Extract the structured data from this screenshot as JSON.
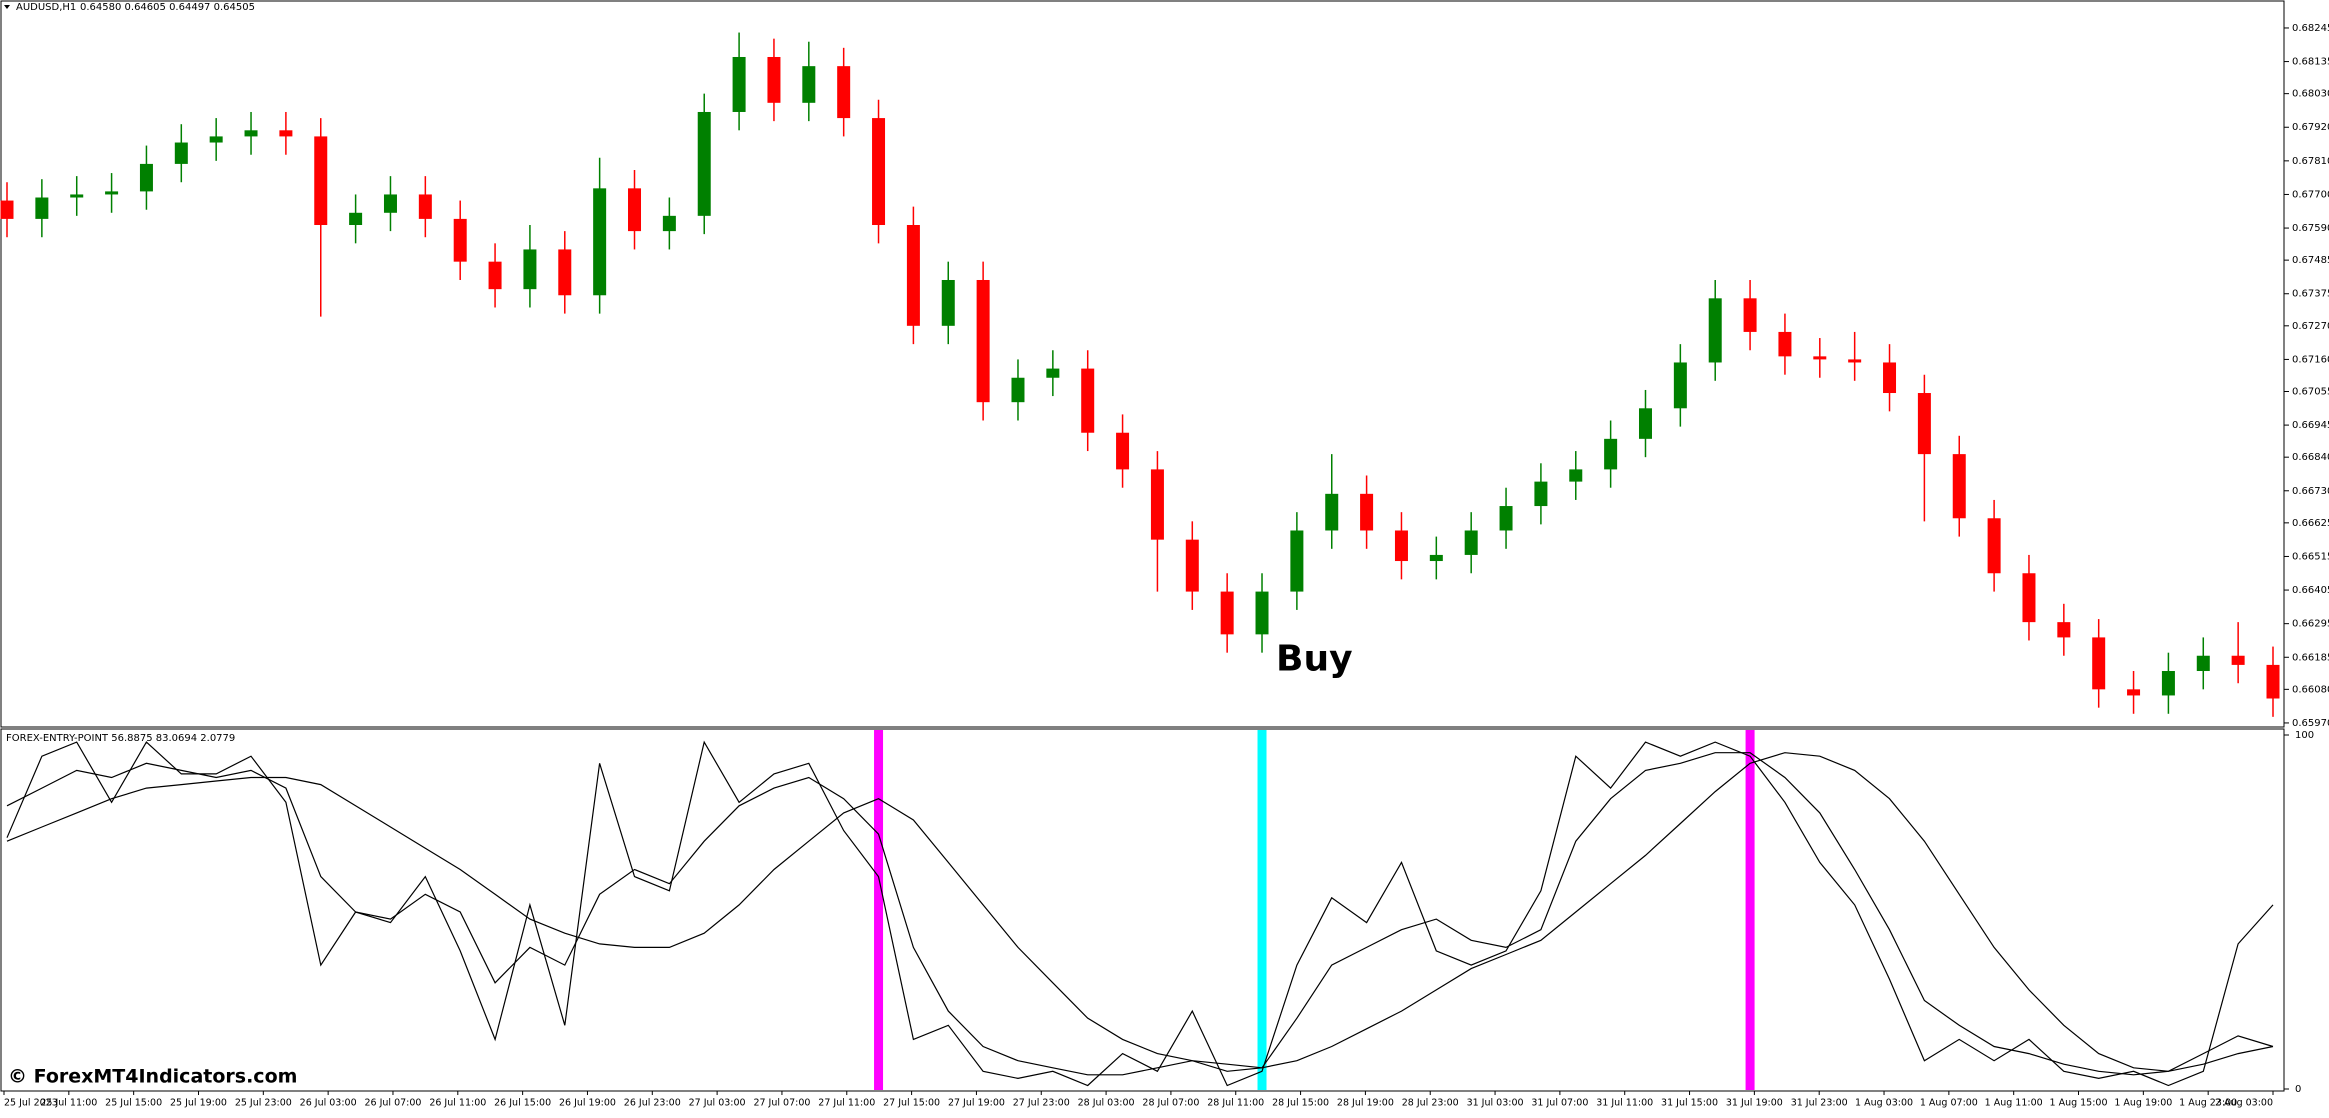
{
  "chart_data": [
    {
      "type": "candlestick",
      "title": "AUDUSD,H1",
      "subtitle": "0.64580 0.64605 0.64497 0.64505",
      "open": [
        0.6768,
        0.6762,
        0.6769,
        0.677,
        0.6771,
        0.678,
        0.6787,
        0.6789,
        0.6791,
        0.6789,
        0.676,
        0.6764,
        0.677,
        0.6762,
        0.6748,
        0.6739,
        0.6752,
        0.6737,
        0.6772,
        0.6758,
        0.6763,
        0.6797,
        0.6815,
        0.68,
        0.6812,
        0.6795,
        0.676,
        0.6727,
        0.6742,
        0.6702,
        0.671,
        0.6713,
        0.6692,
        0.668,
        0.6657,
        0.664,
        0.6626,
        0.664,
        0.666,
        0.6672,
        0.666,
        0.665,
        0.6652,
        0.666,
        0.6668,
        0.6676,
        0.668,
        0.669,
        0.67,
        0.6715,
        0.6736,
        0.6725,
        0.6717,
        0.6716,
        0.6715,
        0.6705,
        0.6685,
        0.6664,
        0.6646,
        0.663,
        0.6625,
        0.6608,
        0.6606,
        0.6614,
        0.6619,
        0.6616
      ],
      "high": [
        0.6774,
        0.6775,
        0.6776,
        0.6777,
        0.6786,
        0.6793,
        0.6795,
        0.6797,
        0.6797,
        0.6795,
        0.677,
        0.6776,
        0.6776,
        0.6768,
        0.6754,
        0.676,
        0.6758,
        0.6782,
        0.6778,
        0.6769,
        0.6803,
        0.6823,
        0.6821,
        0.682,
        0.6818,
        0.6801,
        0.6766,
        0.6748,
        0.6748,
        0.6716,
        0.6719,
        0.6719,
        0.6698,
        0.6686,
        0.6663,
        0.6646,
        0.6646,
        0.6666,
        0.6685,
        0.6678,
        0.6666,
        0.6658,
        0.6666,
        0.6674,
        0.6682,
        0.6686,
        0.6696,
        0.6706,
        0.6721,
        0.6742,
        0.6742,
        0.6731,
        0.6723,
        0.6725,
        0.6721,
        0.6711,
        0.6691,
        0.667,
        0.6652,
        0.6636,
        0.6631,
        0.6614,
        0.662,
        0.6625,
        0.663,
        0.6622
      ],
      "low": [
        0.6756,
        0.6756,
        0.6763,
        0.6764,
        0.6765,
        0.6774,
        0.6781,
        0.6783,
        0.6783,
        0.673,
        0.6754,
        0.6758,
        0.6756,
        0.6742,
        0.6733,
        0.6733,
        0.6731,
        0.6731,
        0.6752,
        0.6752,
        0.6757,
        0.6791,
        0.6794,
        0.6794,
        0.6789,
        0.6754,
        0.6721,
        0.6721,
        0.6696,
        0.6696,
        0.6704,
        0.6686,
        0.6674,
        0.664,
        0.6634,
        0.662,
        0.662,
        0.6634,
        0.6654,
        0.6654,
        0.6644,
        0.6644,
        0.6646,
        0.6654,
        0.6662,
        0.667,
        0.6674,
        0.6684,
        0.6694,
        0.6709,
        0.6719,
        0.6711,
        0.671,
        0.6709,
        0.6699,
        0.6663,
        0.6658,
        0.664,
        0.6624,
        0.6619,
        0.6602,
        0.66,
        0.66,
        0.6608,
        0.661,
        0.6599
      ],
      "close": [
        0.6762,
        0.6769,
        0.677,
        0.6771,
        0.678,
        0.6787,
        0.6789,
        0.6791,
        0.6789,
        0.676,
        0.6764,
        0.677,
        0.6762,
        0.6748,
        0.6739,
        0.6752,
        0.6737,
        0.6772,
        0.6758,
        0.6763,
        0.6797,
        0.6815,
        0.68,
        0.6812,
        0.6795,
        0.676,
        0.6727,
        0.6742,
        0.6702,
        0.671,
        0.6713,
        0.6692,
        0.668,
        0.6657,
        0.664,
        0.6626,
        0.664,
        0.666,
        0.6672,
        0.666,
        0.665,
        0.6652,
        0.666,
        0.6668,
        0.6676,
        0.668,
        0.669,
        0.67,
        0.6715,
        0.6736,
        0.6725,
        0.6717,
        0.6716,
        0.6715,
        0.6705,
        0.6685,
        0.6664,
        0.6646,
        0.663,
        0.6625,
        0.6608,
        0.6606,
        0.6614,
        0.6619,
        0.6616,
        0.6605
      ],
      "up_color": "#008000",
      "down_color": "#ff0000",
      "ylim": [
        0.6596,
        0.6833
      ],
      "yticks": [
        0.68245,
        0.68135,
        {
          "value": 0.6803,
          "label": "0.68030"
        },
        {
          "value": 0.6792,
          "label": "0.67920"
        },
        {
          "value": 0.6781,
          "label": "0.67810"
        },
        {
          "value": 0.677,
          "label": "0.67700"
        },
        {
          "value": 0.6759,
          "label": "0.67590"
        },
        0.67485,
        0.67375,
        {
          "value": 0.6727,
          "label": "0.67270"
        },
        {
          "value": 0.6716,
          "label": "0.67160"
        },
        0.67055,
        0.66945,
        {
          "value": 0.6684,
          "label": "0.66840"
        },
        {
          "value": 0.6673,
          "label": "0.66730"
        },
        0.66625,
        0.66515,
        0.66405,
        0.66295,
        0.66185,
        {
          "value": 0.6608,
          "label": "0.66080"
        },
        {
          "value": 0.6597,
          "label": "0.65970"
        }
      ],
      "annotations": [
        {
          "text": "Buy",
          "candle": 36
        }
      ]
    },
    {
      "type": "line",
      "title": "FOREX-ENTRY-POINT 56.8875 83.0694 2.0779",
      "series": [
        {
          "color": "#000000",
          "values": [
            71,
            94,
            98,
            81,
            98,
            89,
            89,
            94,
            81,
            35,
            50,
            47,
            60,
            39,
            14,
            52,
            18,
            92,
            60,
            56,
            98,
            81,
            89,
            92,
            73,
            60,
            14,
            18,
            5,
            3,
            5,
            1,
            10,
            5,
            22,
            1,
            5,
            35,
            54,
            47,
            64,
            39,
            35,
            39,
            56,
            94,
            85,
            98,
            94,
            98,
            94,
            81,
            64,
            52,
            31,
            8,
            14,
            8,
            14,
            5,
            3,
            5,
            1,
            5,
            41,
            52
          ]
        },
        {
          "color": "#000000",
          "values": [
            80,
            85,
            90,
            88,
            92,
            90,
            88,
            90,
            85,
            60,
            50,
            48,
            55,
            50,
            30,
            40,
            35,
            55,
            62,
            58,
            70,
            80,
            85,
            88,
            82,
            72,
            40,
            22,
            12,
            8,
            6,
            4,
            4,
            6,
            8,
            5,
            6,
            20,
            35,
            40,
            45,
            48,
            42,
            40,
            45,
            70,
            82,
            90,
            92,
            95,
            95,
            88,
            78,
            62,
            45,
            25,
            18,
            12,
            10,
            7,
            5,
            4,
            5,
            10,
            15,
            12
          ]
        },
        {
          "color": "#000000",
          "values": [
            70,
            74,
            78,
            82,
            85,
            86,
            87,
            88,
            88,
            86,
            80,
            74,
            68,
            62,
            55,
            48,
            44,
            41,
            40,
            40,
            44,
            52,
            62,
            70,
            78,
            82,
            76,
            64,
            52,
            40,
            30,
            20,
            14,
            10,
            8,
            7,
            6,
            8,
            12,
            17,
            22,
            28,
            34,
            38,
            42,
            50,
            58,
            66,
            75,
            84,
            92,
            95,
            94,
            90,
            82,
            70,
            55,
            40,
            28,
            18,
            10,
            6,
            5,
            7,
            10,
            12
          ]
        }
      ],
      "signals": [
        {
          "candle": 25,
          "color": "#ff00ff"
        },
        {
          "candle": 36,
          "color": "#00ffff"
        },
        {
          "candle": 50,
          "color": "#ff00ff"
        }
      ],
      "ylim": [
        0,
        100
      ],
      "yticks": [
        0,
        100
      ],
      "x_labels": [
        "25 Jul 2023",
        "25 Jul 11:00",
        "25 Jul 15:00",
        "25 Jul 19:00",
        "25 Jul 23:00",
        "26 Jul 03:00",
        "26 Jul 07:00",
        "26 Jul 11:00",
        "26 Jul 15:00",
        "26 Jul 19:00",
        "26 Jul 23:00",
        "27 Jul 03:00",
        "27 Jul 07:00",
        "27 Jul 11:00",
        "27 Jul 15:00",
        "27 Jul 19:00",
        "27 Jul 23:00",
        "28 Jul 03:00",
        "28 Jul 07:00",
        "28 Jul 11:00",
        "28 Jul 15:00",
        "28 Jul 19:00",
        "28 Jul 23:00",
        "31 Jul 03:00",
        "31 Jul 07:00",
        "31 Jul 11:00",
        "31 Jul 15:00",
        "31 Jul 19:00",
        "31 Jul 23:00",
        "1 Aug 03:00",
        "1 Aug 07:00",
        "1 Aug 11:00",
        "1 Aug 15:00",
        "1 Aug 19:00",
        "1 Aug 23:00",
        "2 Aug 03:00"
      ],
      "watermark": "© ForexMT4Indicators.com"
    }
  ]
}
